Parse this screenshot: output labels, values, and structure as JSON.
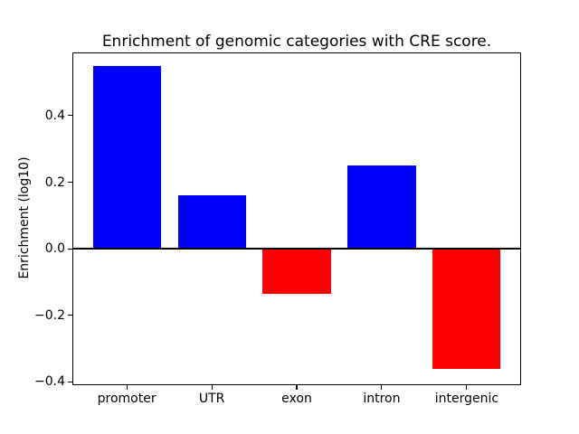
{
  "figure": {
    "background": "#ffffff"
  },
  "chart_data": {
    "type": "bar",
    "title": "Enrichment of genomic categories with CRE score.",
    "xlabel": "",
    "ylabel": "Enrichment (log10)",
    "categories": [
      "promoter",
      "UTR",
      "exon",
      "intron",
      "intergenic"
    ],
    "values": [
      0.55,
      0.16,
      -0.135,
      0.25,
      -0.36
    ],
    "bar_colors": [
      "#0000ff",
      "#0000ff",
      "#ff0000",
      "#0000ff",
      "#ff0000"
    ],
    "positive_color": "#0000ff",
    "negative_color": "#ff0000",
    "yticks": [
      0.4,
      0.2,
      0.0,
      -0.2,
      -0.4
    ],
    "ylim": [
      -0.41,
      0.59
    ],
    "grid": false,
    "legend": null,
    "zero_line": {
      "y": 0.0,
      "color": "#000000"
    },
    "axis_color": "#000000",
    "text_color": "#000000"
  }
}
